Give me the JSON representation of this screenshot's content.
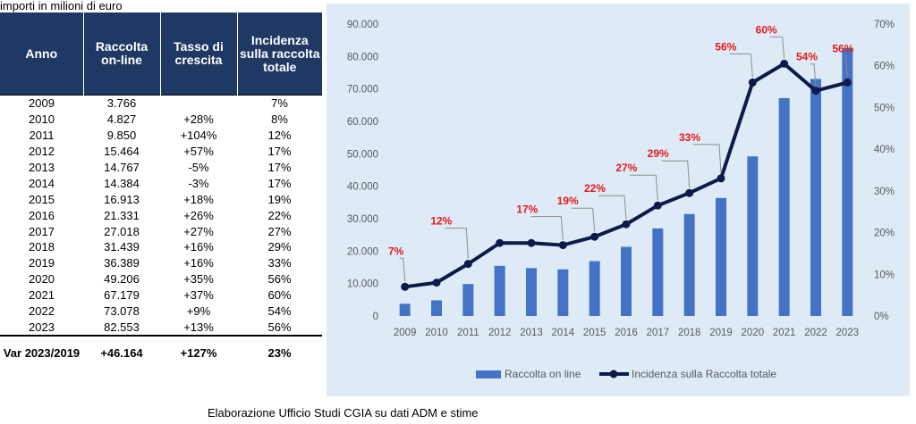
{
  "caption_top": "importi in milioni di euro",
  "caption_bottom": "Elaborazione Ufficio Studi CGIA su dati ADM e stime",
  "table": {
    "headers": [
      "Anno",
      "Raccolta on-line",
      "Tasso di crescita",
      "Incidenza sulla raccolta totale"
    ],
    "rows": [
      [
        "2009",
        "3.766",
        "",
        "7%"
      ],
      [
        "2010",
        "4.827",
        "+28%",
        "8%"
      ],
      [
        "2011",
        "9.850",
        "+104%",
        "12%"
      ],
      [
        "2012",
        "15.464",
        "+57%",
        "17%"
      ],
      [
        "2013",
        "14.767",
        "-5%",
        "17%"
      ],
      [
        "2014",
        "14.384",
        "-3%",
        "17%"
      ],
      [
        "2015",
        "16.913",
        "+18%",
        "19%"
      ],
      [
        "2016",
        "21.331",
        "+26%",
        "22%"
      ],
      [
        "2017",
        "27.018",
        "+27%",
        "27%"
      ],
      [
        "2018",
        "31.439",
        "+16%",
        "29%"
      ],
      [
        "2019",
        "36.389",
        "+16%",
        "33%"
      ],
      [
        "2020",
        "49.206",
        "+35%",
        "56%"
      ],
      [
        "2021",
        "67.179",
        "+37%",
        "60%"
      ],
      [
        "2022",
        "73.078",
        "+9%",
        "54%"
      ],
      [
        "2023",
        "82.553",
        "+13%",
        "56%"
      ]
    ],
    "footer": [
      "Var 2023/2019",
      "+46.164",
      "+127%",
      "23%"
    ]
  },
  "chart_data": {
    "type": "bar",
    "categories": [
      "2009",
      "2010",
      "2011",
      "2012",
      "2013",
      "2014",
      "2015",
      "2016",
      "2017",
      "2018",
      "2019",
      "2020",
      "2021",
      "2022",
      "2023"
    ],
    "series": [
      {
        "name": "Raccolta on line",
        "type": "bar",
        "axis": "left",
        "color": "#4472c4",
        "values": [
          3766,
          4827,
          9850,
          15464,
          14767,
          14384,
          16913,
          21331,
          27018,
          31439,
          36389,
          49206,
          67179,
          73078,
          82553
        ]
      },
      {
        "name": "Incidenza sulla Raccolta totale",
        "type": "line",
        "axis": "right",
        "color": "#0d1b4b",
        "values": [
          7,
          8,
          12.5,
          17.5,
          17.5,
          17,
          19,
          22,
          26.5,
          29.5,
          33,
          56,
          60.5,
          54,
          56
        ],
        "labels": {
          "2009": "7%",
          "2011": "12%",
          "2014": "17%",
          "2015": "19%",
          "2016": "22%",
          "2017": "27%",
          "2018": "29%",
          "2019": "33%",
          "2020": "56%",
          "2021": "60%",
          "2022": "54%",
          "2023": "56%"
        }
      }
    ],
    "y_left": {
      "min": 0,
      "max": 90000,
      "step": 10000,
      "ticks": [
        "0",
        "10.000",
        "20.000",
        "30.000",
        "40.000",
        "50.000",
        "60.000",
        "70.000",
        "80.000",
        "90.000"
      ]
    },
    "y_right": {
      "min": 0,
      "max": 70,
      "step": 10,
      "ticks": [
        "0%",
        "10%",
        "20%",
        "30%",
        "40%",
        "50%",
        "60%",
        "70%"
      ]
    },
    "label_color": "#e31a1c",
    "legend_position": "bottom",
    "grid": false
  }
}
